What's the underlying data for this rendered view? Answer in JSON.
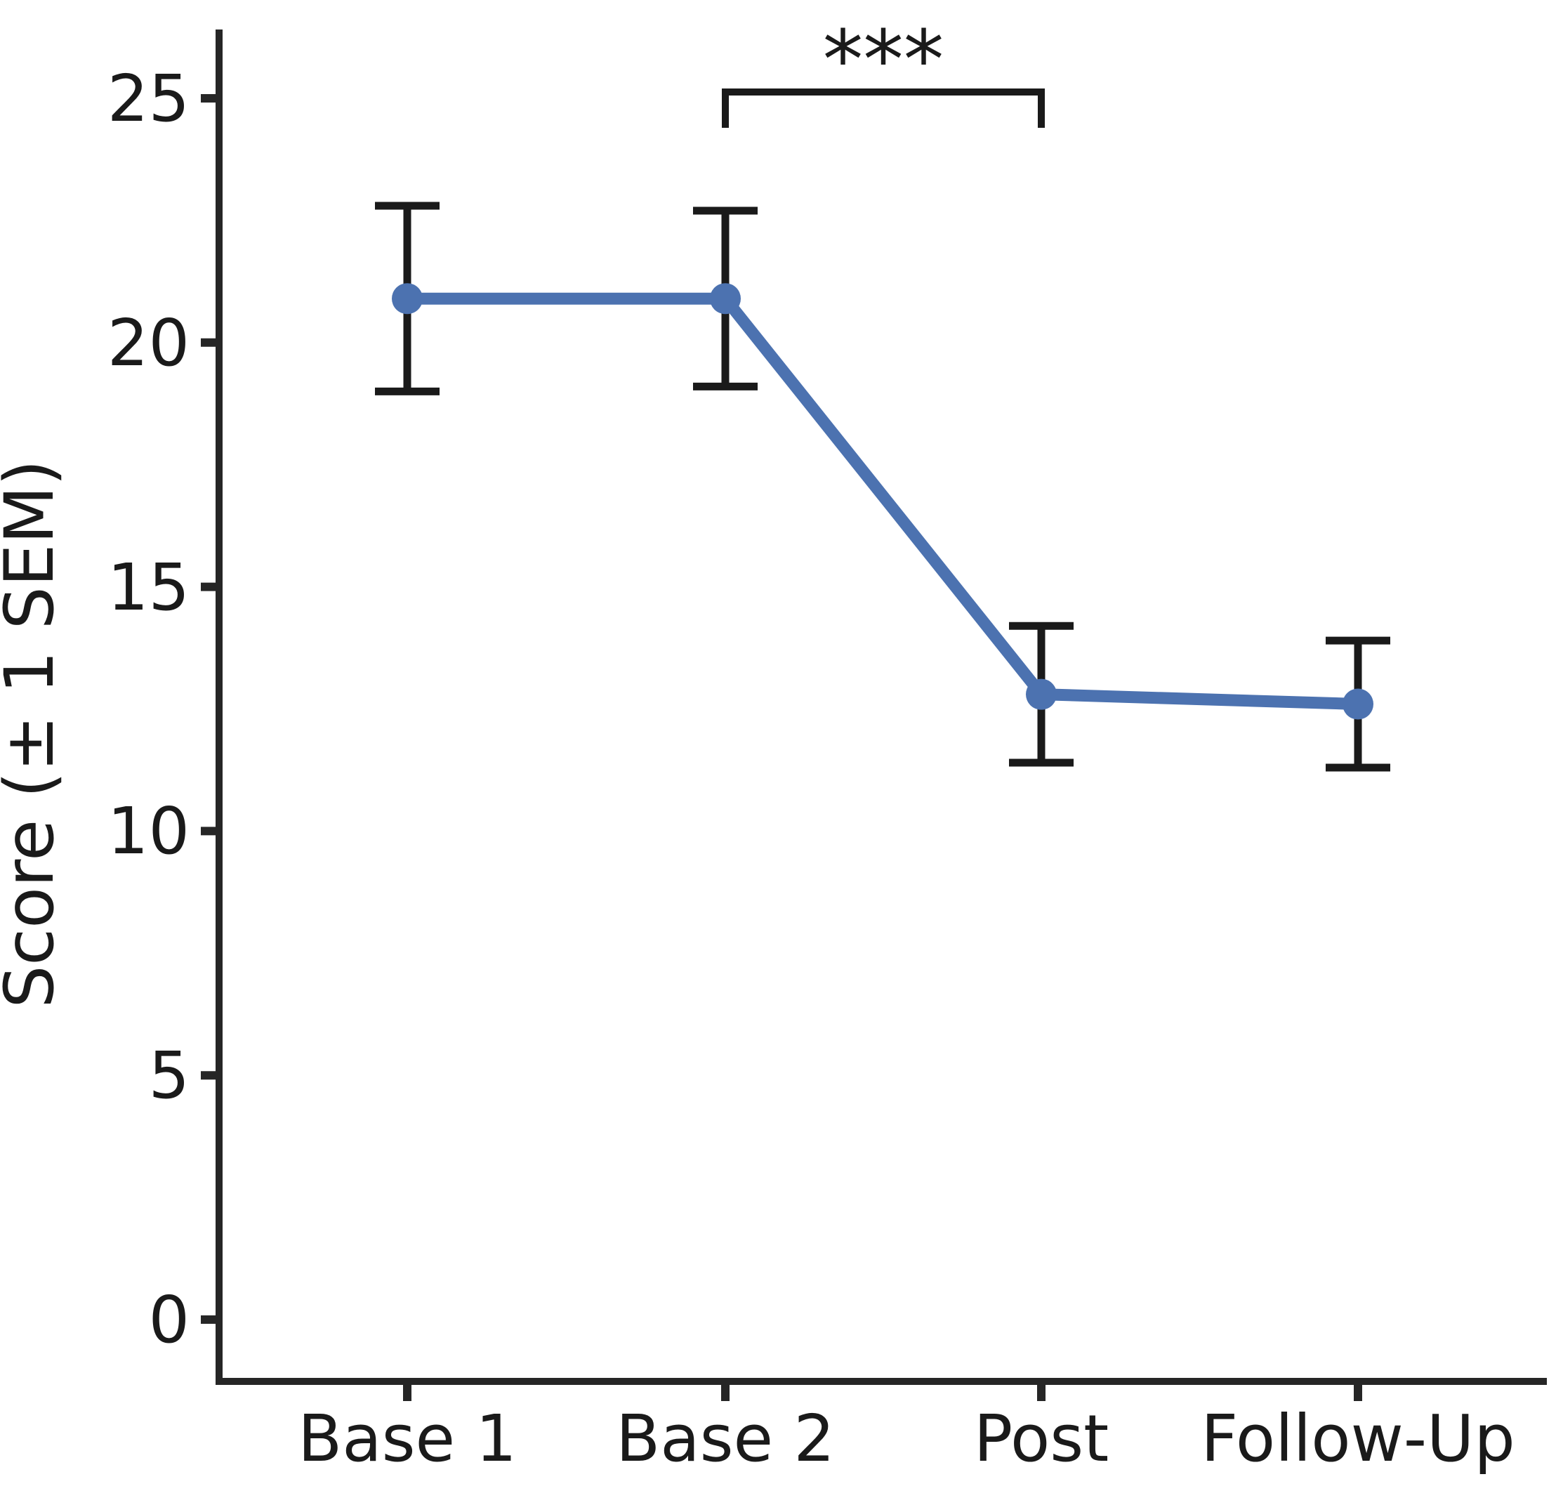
{
  "figure": {
    "background": "#ffffff"
  },
  "chart_data": {
    "type": "line",
    "title": "",
    "xlabel": "",
    "ylabel": "Score (± 1 SEM)",
    "categories": [
      "Base 1",
      "Base 2",
      "Post",
      "Follow-Up"
    ],
    "series": [
      {
        "name": "Score",
        "values": [
          20.9,
          20.9,
          12.8,
          12.6
        ],
        "sem": [
          1.9,
          1.8,
          1.4,
          1.3
        ],
        "color": "#4c72b0",
        "marker": "circle"
      }
    ],
    "yticks": [
      0,
      5,
      10,
      15,
      20,
      25
    ],
    "ylim": [
      -1.3,
      26.4
    ],
    "grid": false,
    "legend": "none",
    "error_bar_color": "#1a1a1a",
    "axis_color": "#262626",
    "significance": {
      "text": "***",
      "from": "Base 2",
      "to": "Post"
    }
  }
}
